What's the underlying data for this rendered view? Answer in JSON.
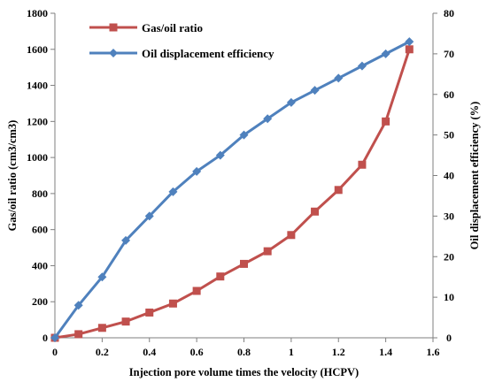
{
  "chart_data": {
    "type": "line",
    "xlabel": "Injection pore volume times the velocity (HCPV)",
    "ylabel_left": "Gas/oil ratio (cm3/cm3)",
    "ylabel_right": "Oil displacement efficiency (%)",
    "xlim": [
      0,
      1.6
    ],
    "xticks": [
      "0",
      "0.2",
      "0.4",
      "0.6",
      "0.8",
      "1",
      "1.2",
      "1.4",
      "1.6"
    ],
    "ylim_left": [
      0,
      1800
    ],
    "yticks_left": [
      "0",
      "200",
      "400",
      "600",
      "800",
      "1000",
      "1200",
      "1400",
      "1600",
      "1800"
    ],
    "ylim_right": [
      0,
      80
    ],
    "yticks_right": [
      "0",
      "10",
      "20",
      "30",
      "40",
      "50",
      "60",
      "70",
      "80"
    ],
    "grid": false,
    "legend_position": "top-left",
    "series": [
      {
        "name": "Gas/oil ratio",
        "axis": "left",
        "color": "#C0504D",
        "marker": "square",
        "x": [
          0,
          0.1,
          0.2,
          0.3,
          0.4,
          0.5,
          0.6,
          0.7,
          0.8,
          0.9,
          1.0,
          1.1,
          1.2,
          1.3,
          1.4,
          1.5
        ],
        "values": [
          0,
          20,
          55,
          90,
          140,
          190,
          260,
          340,
          410,
          480,
          570,
          700,
          820,
          960,
          1200,
          1600
        ]
      },
      {
        "name": "Oil displacement efficiency",
        "axis": "right",
        "color": "#4F81BD",
        "marker": "diamond",
        "x": [
          0,
          0.1,
          0.2,
          0.3,
          0.4,
          0.5,
          0.6,
          0.7,
          0.8,
          0.9,
          1.0,
          1.1,
          1.2,
          1.3,
          1.4,
          1.5
        ],
        "values": [
          0,
          8,
          15,
          24,
          30,
          36,
          41,
          45,
          50,
          54,
          58,
          61,
          64,
          67,
          70,
          73
        ]
      }
    ]
  }
}
